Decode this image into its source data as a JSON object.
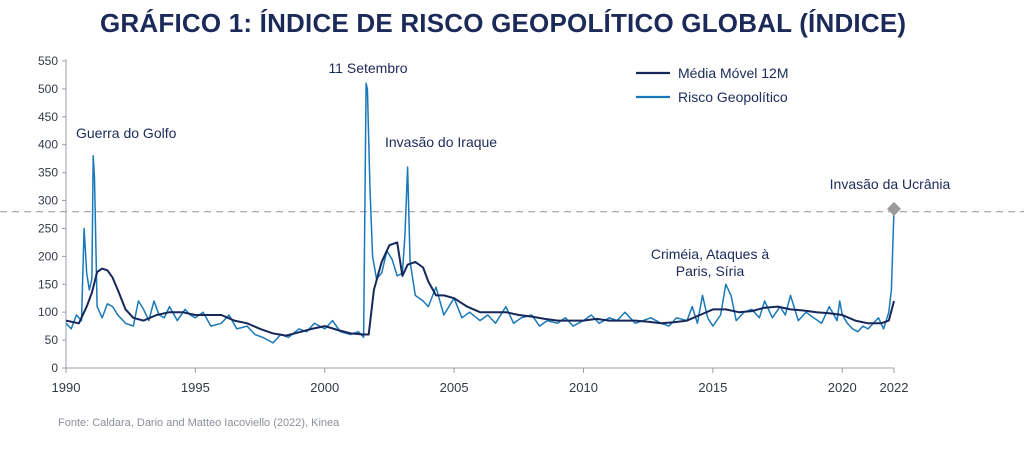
{
  "title": "GRÁFICO 1: ÍNDICE DE RISCO GEOPOLÍTICO GLOBAL (ÍNDICE)",
  "source": "Fonte:  Caldara, Dario and Matteo Iacoviello (2022), Kinea",
  "colors": {
    "title": "#1c2a5a",
    "ma_line": "#16285a",
    "risk_line": "#1a78b8",
    "reference": "#a0a0a0",
    "marker": "#9a9a9a"
  },
  "chart_data": {
    "type": "line",
    "xlim": [
      1990,
      2022
    ],
    "ylim": [
      0,
      550
    ],
    "xticks": [
      1990,
      1995,
      2000,
      2005,
      2010,
      2015,
      2020,
      2022
    ],
    "yticks": [
      0,
      50,
      100,
      150,
      200,
      250,
      300,
      350,
      400,
      450,
      500,
      550
    ],
    "reference_line": 280,
    "legend": [
      "Média Móvel 12M",
      "Risco Geopolítico"
    ],
    "legend_position": "top-right",
    "annotations": [
      {
        "text": "Guerra do Golfo",
        "x": 1991.0,
        "y": 380
      },
      {
        "text": "11 Setembro",
        "x": 2001.7,
        "y": 510
      },
      {
        "text": "Invasão do Iraque",
        "x": 2003.2,
        "y": 360
      },
      {
        "text": "Criméia, Ataques à",
        "x": 2014.2,
        "y": 150
      },
      {
        "text": "Paris, Síria",
        "x": 2014.2,
        "y": 150
      },
      {
        "text": "Invasão da Ucrânia",
        "x": 2022.0,
        "y": 285
      }
    ],
    "marker_point": {
      "x": 2022.0,
      "y": 285
    },
    "series": [
      {
        "name": "Média Móvel 12M",
        "x": [
          1990.0,
          1990.5,
          1990.8,
          1991.0,
          1991.2,
          1991.4,
          1991.6,
          1991.8,
          1992.0,
          1992.3,
          1992.6,
          1993.0,
          1993.5,
          1994.0,
          1994.5,
          1995.0,
          1995.5,
          1996.0,
          1996.5,
          1997.0,
          1997.5,
          1998.0,
          1998.5,
          1999.0,
          1999.5,
          2000.0,
          2000.5,
          2001.0,
          2001.5,
          2001.7,
          2001.9,
          2002.2,
          2002.5,
          2002.8,
          2003.0,
          2003.2,
          2003.5,
          2003.8,
          2004.0,
          2004.3,
          2004.6,
          2005.0,
          2005.5,
          2006.0,
          2006.5,
          2007.0,
          2007.5,
          2008.0,
          2008.5,
          2009.0,
          2009.5,
          2010.0,
          2010.5,
          2011.0,
          2011.5,
          2012.0,
          2012.5,
          2013.0,
          2013.5,
          2014.0,
          2014.5,
          2015.0,
          2015.5,
          2016.0,
          2016.5,
          2017.0,
          2017.5,
          2018.0,
          2018.5,
          2019.0,
          2019.5,
          2020.0,
          2020.5,
          2021.0,
          2021.5,
          2021.8,
          2022.0
        ],
        "values": [
          85,
          80,
          110,
          135,
          172,
          178,
          175,
          162,
          140,
          105,
          90,
          85,
          95,
          100,
          100,
          95,
          95,
          95,
          85,
          80,
          70,
          62,
          58,
          64,
          70,
          75,
          68,
          62,
          60,
          60,
          140,
          190,
          220,
          225,
          165,
          185,
          190,
          180,
          155,
          130,
          130,
          125,
          110,
          100,
          100,
          100,
          95,
          92,
          88,
          85,
          85,
          85,
          88,
          85,
          85,
          85,
          83,
          80,
          82,
          85,
          95,
          105,
          105,
          100,
          102,
          108,
          110,
          105,
          103,
          100,
          98,
          95,
          85,
          80,
          80,
          85,
          120
        ]
      },
      {
        "name": "Risco Geopolítico",
        "x": [
          1990.0,
          1990.2,
          1990.4,
          1990.6,
          1990.7,
          1990.8,
          1990.9,
          1991.0,
          1991.05,
          1991.1,
          1991.2,
          1991.4,
          1991.6,
          1991.8,
          1992.0,
          1992.3,
          1992.6,
          1992.8,
          1993.0,
          1993.2,
          1993.4,
          1993.6,
          1993.8,
          1994.0,
          1994.3,
          1994.6,
          1994.8,
          1995.0,
          1995.3,
          1995.6,
          1996.0,
          1996.3,
          1996.6,
          1997.0,
          1997.3,
          1997.6,
          1998.0,
          1998.3,
          1998.6,
          1999.0,
          1999.3,
          1999.6,
          2000.0,
          2000.3,
          2000.6,
          2001.0,
          2001.3,
          2001.5,
          2001.6,
          2001.65,
          2001.75,
          2001.85,
          2002.0,
          2002.2,
          2002.4,
          2002.6,
          2002.8,
          2003.0,
          2003.1,
          2003.2,
          2003.3,
          2003.5,
          2003.8,
          2004.0,
          2004.3,
          2004.6,
          2005.0,
          2005.3,
          2005.6,
          2006.0,
          2006.3,
          2006.6,
          2007.0,
          2007.3,
          2007.6,
          2008.0,
          2008.3,
          2008.6,
          2009.0,
          2009.3,
          2009.6,
          2010.0,
          2010.3,
          2010.6,
          2011.0,
          2011.3,
          2011.6,
          2012.0,
          2012.3,
          2012.6,
          2013.0,
          2013.3,
          2013.6,
          2014.0,
          2014.2,
          2014.4,
          2014.6,
          2014.8,
          2015.0,
          2015.3,
          2015.5,
          2015.7,
          2015.9,
          2016.2,
          2016.5,
          2016.8,
          2017.0,
          2017.3,
          2017.6,
          2017.8,
          2018.0,
          2018.3,
          2018.6,
          2018.9,
          2019.2,
          2019.5,
          2019.8,
          2019.9,
          2020.0,
          2020.2,
          2020.4,
          2020.6,
          2020.8,
          2021.0,
          2021.2,
          2021.4,
          2021.6,
          2021.8,
          2021.9,
          2022.0
        ],
        "values": [
          80,
          70,
          95,
          85,
          250,
          170,
          140,
          160,
          380,
          340,
          110,
          90,
          115,
          110,
          95,
          80,
          75,
          120,
          105,
          85,
          120,
          95,
          90,
          110,
          85,
          105,
          95,
          90,
          100,
          75,
          80,
          95,
          70,
          75,
          60,
          55,
          45,
          60,
          55,
          70,
          65,
          80,
          70,
          85,
          65,
          60,
          65,
          55,
          510,
          500,
          320,
          200,
          160,
          170,
          210,
          195,
          165,
          170,
          240,
          360,
          190,
          130,
          120,
          110,
          145,
          95,
          125,
          90,
          100,
          85,
          95,
          80,
          110,
          80,
          90,
          95,
          75,
          85,
          80,
          90,
          75,
          85,
          95,
          80,
          90,
          85,
          100,
          80,
          85,
          90,
          80,
          75,
          90,
          85,
          110,
          80,
          130,
          90,
          75,
          95,
          150,
          130,
          85,
          100,
          105,
          90,
          120,
          90,
          110,
          95,
          130,
          85,
          100,
          90,
          80,
          110,
          85,
          120,
          95,
          80,
          70,
          65,
          75,
          70,
          80,
          90,
          70,
          100,
          140,
          285
        ]
      }
    ]
  }
}
